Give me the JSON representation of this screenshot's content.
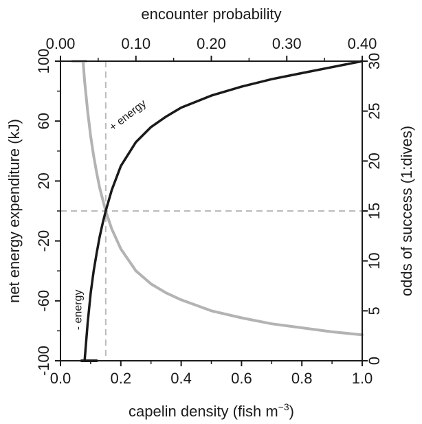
{
  "chart_data": {
    "type": "line",
    "xlabel_bottom": "capelin density (fish m",
    "xlabel_bottom_sup": "−3",
    "xlabel_bottom_close": ")",
    "xlabel_top": "encounter probability",
    "ylabel_left": "net energy expenditure (kJ)",
    "ylabel_right": "odds of success (1:dives)",
    "xlim_bottom": [
      0,
      1.0
    ],
    "xlim_top": [
      0,
      0.4
    ],
    "ylim_left": [
      -100,
      100
    ],
    "ylim_right": [
      0,
      30
    ],
    "xticks_bottom": [
      "0.0",
      "0.2",
      "0.4",
      "0.6",
      "0.8",
      "1.0"
    ],
    "xticks_top": [
      "0.00",
      "0.10",
      "0.20",
      "0.30",
      "0.40"
    ],
    "yticks_left": [
      "-100",
      "-60",
      "-20",
      "20",
      "60",
      "100"
    ],
    "yticks_right": [
      "0",
      "5",
      "10",
      "15",
      "20",
      "25",
      "30"
    ],
    "series": [
      {
        "axis": "left",
        "color": "#1a1a1a",
        "x": [
          0.08,
          0.09,
          0.1,
          0.11,
          0.12,
          0.13,
          0.14,
          0.15,
          0.17,
          0.2,
          0.25,
          0.3,
          0.35,
          0.4,
          0.5,
          0.6,
          0.7,
          0.8,
          0.9,
          1.0
        ],
        "y": [
          -100,
          -75,
          -55,
          -40,
          -28,
          -17,
          -8,
          0,
          14,
          30,
          46,
          56,
          63,
          69,
          77,
          83,
          88,
          92,
          96,
          100
        ]
      },
      {
        "axis": "right",
        "color": "#b3b3b3",
        "x": [
          0.075,
          0.08,
          0.09,
          0.1,
          0.11,
          0.12,
          0.13,
          0.15,
          0.17,
          0.2,
          0.25,
          0.3,
          0.35,
          0.4,
          0.5,
          0.6,
          0.7,
          0.8,
          0.9,
          1.0
        ],
        "y": [
          30,
          28,
          25,
          22.5,
          20.5,
          18.8,
          17.3,
          15,
          13.2,
          11.2,
          9.0,
          7.7,
          6.8,
          6.1,
          5.0,
          4.3,
          3.7,
          3.3,
          2.9,
          2.6
        ]
      }
    ],
    "hlines": [
      {
        "axis": "left",
        "y": -100,
        "x": [
          0.07,
          0.12
        ],
        "color": "#1a1a1a"
      },
      {
        "axis": "right",
        "y": 30,
        "x": [
          0.04,
          0.085
        ],
        "color": "#b3b3b3"
      }
    ],
    "reference_lines": {
      "x": 0.15,
      "y_right": 15,
      "color": "#bbbbbb",
      "style": "dashed"
    },
    "annotations": [
      {
        "text": "+ energy",
        "x": 0.23,
        "y_left": 62,
        "rotate": -38
      },
      {
        "text": "- energy",
        "x": 0.07,
        "y_left": -66,
        "rotate": -90
      }
    ],
    "grid": false
  }
}
